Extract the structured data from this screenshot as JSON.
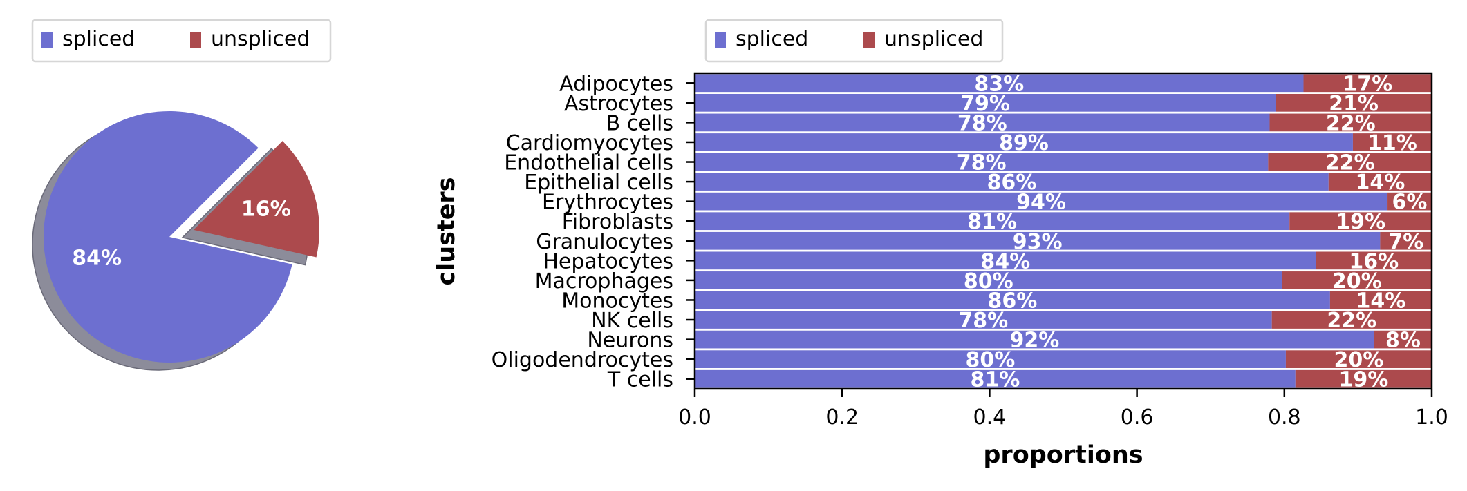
{
  "chart_data": [
    {
      "type": "pie",
      "legend": {
        "placement": "top",
        "entries": [
          "spliced",
          "unspliced"
        ]
      },
      "slices": [
        {
          "label": "spliced",
          "value": 0.84,
          "pct_label": "84%",
          "color": "#6d6fd0"
        },
        {
          "label": "unspliced",
          "value": 0.16,
          "pct_label": "16%",
          "color": "#ac4a4d"
        }
      ],
      "explode": [
        0,
        0.2
      ],
      "shadow": true
    },
    {
      "type": "bar",
      "orientation": "horizontal",
      "stacked": true,
      "xlabel": "proportions",
      "ylabel": "clusters",
      "xlim": [
        0,
        1
      ],
      "xticks": [
        "0.0",
        "0.2",
        "0.4",
        "0.6",
        "0.8",
        "1.0"
      ],
      "legend": {
        "placement": "top",
        "entries": [
          "spliced",
          "unspliced"
        ]
      },
      "categories": [
        "Adipocytes",
        "Astrocytes",
        "B cells",
        "Cardiomyocytes",
        "Endothelial cells",
        "Epithelial cells",
        "Erythrocytes",
        "Fibroblasts",
        "Granulocytes",
        "Hepatocytes",
        "Macrophages",
        "Monocytes",
        "NK cells",
        "Neurons",
        "Oligodendrocytes",
        "T cells"
      ],
      "series": [
        {
          "name": "spliced",
          "color": "#6d6fd0",
          "values": [
            0.826,
            0.788,
            0.78,
            0.893,
            0.778,
            0.86,
            0.94,
            0.807,
            0.93,
            0.843,
            0.797,
            0.862,
            0.783,
            0.922,
            0.802,
            0.815
          ],
          "labels": [
            "83%",
            "79%",
            "78%",
            "89%",
            "78%",
            "86%",
            "94%",
            "81%",
            "93%",
            "84%",
            "80%",
            "86%",
            "78%",
            "92%",
            "80%",
            "81%"
          ]
        },
        {
          "name": "unspliced",
          "color": "#ac4a4d",
          "values": [
            0.174,
            0.212,
            0.22,
            0.107,
            0.222,
            0.14,
            0.06,
            0.193,
            0.07,
            0.157,
            0.203,
            0.138,
            0.217,
            0.078,
            0.198,
            0.185
          ],
          "labels": [
            "17%",
            "21%",
            "22%",
            "11%",
            "22%",
            "14%",
            "6%",
            "19%",
            "7%",
            "16%",
            "20%",
            "14%",
            "22%",
            "8%",
            "20%",
            "19%"
          ]
        }
      ]
    }
  ]
}
